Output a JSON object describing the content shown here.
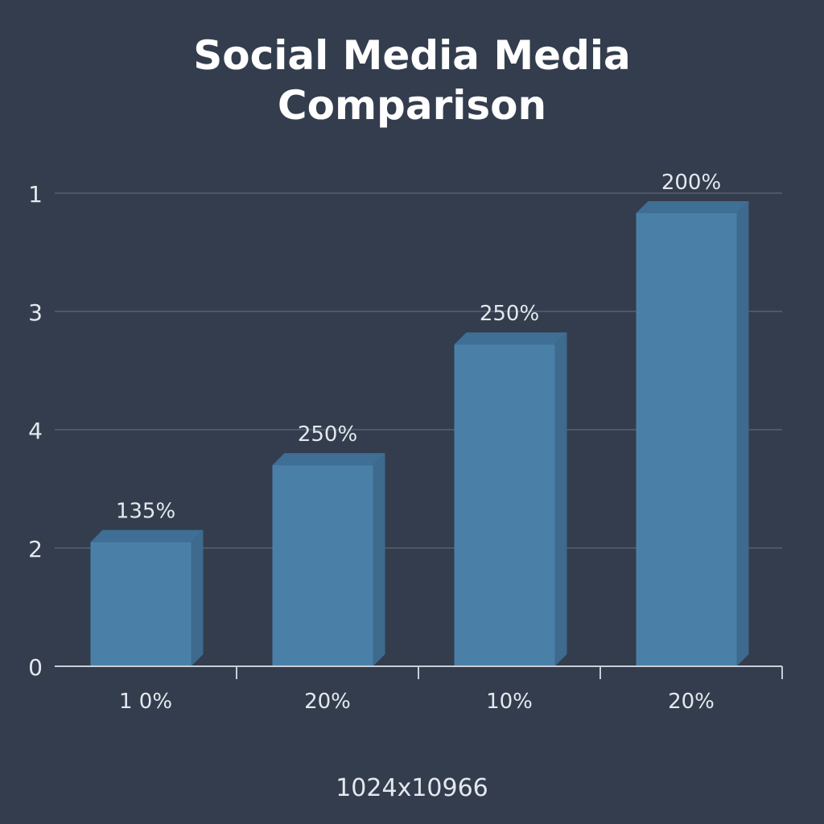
{
  "title": "Social Media Media\nComparison",
  "footer_text": "1024x10966",
  "colors": {
    "background": "#333d4d",
    "bar_front": "#4a80a8",
    "bar_side": "#3d6a8d",
    "bar_top": "#3f6f95",
    "grid": "#56606e",
    "axis": "#c9ced6",
    "text": "#e4e8ee"
  },
  "chart_data": {
    "type": "bar",
    "title": "Social Media Media\nComparison",
    "categories": [
      "1 0%",
      "20%",
      "10%",
      "20%"
    ],
    "values": [
      1.05,
      1.7,
      2.72,
      3.83
    ],
    "data_labels": [
      "135%",
      "250%",
      "250%",
      "200%"
    ],
    "y_tick_labels": [
      "0",
      "2",
      "4",
      "3",
      "1"
    ],
    "y_tick_positions": [
      0,
      1,
      2,
      3,
      4
    ],
    "ylim": [
      0,
      4
    ],
    "xlabel": "",
    "ylabel": "",
    "grid": true,
    "legend": "none"
  }
}
